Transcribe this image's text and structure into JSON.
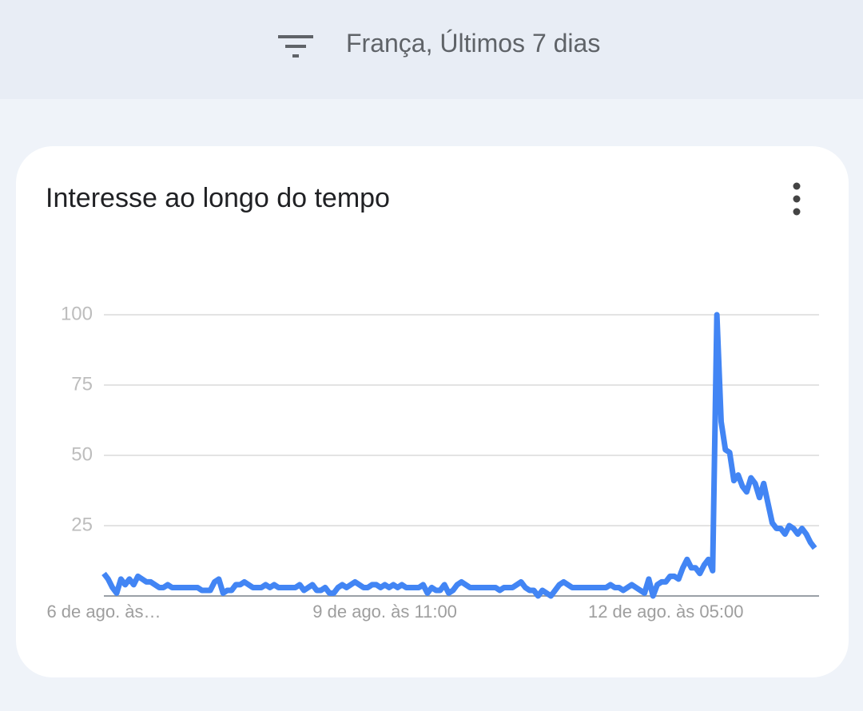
{
  "header": {
    "filter": "França, Últimos 7 dias"
  },
  "card": {
    "title": "Interesse ao longo do tempo"
  },
  "chart_data": {
    "type": "line",
    "categories": [
      "6 de ago. às…",
      null,
      null,
      null,
      null,
      null,
      null,
      null,
      null,
      null,
      null,
      null,
      null,
      null,
      null,
      null,
      null,
      null,
      null,
      null,
      null,
      null,
      null,
      null,
      null,
      null,
      null,
      null,
      null,
      null,
      null,
      null,
      null,
      null,
      null,
      null,
      null,
      null,
      null,
      null,
      null,
      null,
      null,
      null,
      null,
      null,
      null,
      null,
      null,
      null,
      null,
      null,
      null,
      null,
      null,
      null,
      null,
      null,
      null,
      null,
      null,
      null,
      null,
      null,
      null,
      null,
      "9 de ago. às 11:00",
      null,
      null,
      null,
      null,
      null,
      null,
      null,
      null,
      null,
      null,
      null,
      null,
      null,
      null,
      null,
      null,
      null,
      null,
      null,
      null,
      null,
      null,
      null,
      null,
      null,
      null,
      null,
      null,
      null,
      null,
      null,
      null,
      null,
      null,
      null,
      null,
      null,
      null,
      null,
      null,
      null,
      null,
      null,
      null,
      null,
      null,
      null,
      null,
      null,
      null,
      null,
      null,
      null,
      null,
      null,
      null,
      null,
      null,
      null,
      null,
      null,
      null,
      null,
      null,
      null,
      "12 de ago. às 05:00",
      null,
      null,
      null,
      null,
      null,
      null,
      null,
      null,
      null,
      null,
      null,
      null,
      null,
      null,
      null,
      null,
      null,
      null,
      null,
      null,
      null,
      null,
      null,
      null,
      null,
      null,
      null,
      null,
      null,
      null,
      null,
      null,
      null,
      null,
      null
    ],
    "values": [
      8,
      6,
      3,
      1,
      6,
      4,
      6,
      4,
      7,
      6,
      5,
      5,
      4,
      3,
      3,
      4,
      3,
      3,
      3,
      3,
      3,
      3,
      3,
      2,
      2,
      2,
      5,
      6,
      1,
      2,
      2,
      4,
      4,
      5,
      4,
      3,
      3,
      3,
      4,
      3,
      4,
      3,
      3,
      3,
      3,
      3,
      4,
      2,
      3,
      4,
      2,
      2,
      3,
      1,
      1,
      3,
      4,
      3,
      4,
      5,
      4,
      3,
      3,
      4,
      4,
      3,
      4,
      3,
      4,
      3,
      4,
      3,
      3,
      3,
      3,
      4,
      1,
      3,
      2,
      2,
      4,
      1,
      2,
      4,
      5,
      4,
      3,
      3,
      3,
      3,
      3,
      3,
      3,
      2,
      3,
      3,
      3,
      4,
      5,
      3,
      2,
      2,
      0,
      2,
      1,
      0,
      2,
      4,
      5,
      4,
      3,
      3,
      3,
      3,
      3,
      3,
      3,
      3,
      3,
      4,
      3,
      3,
      2,
      3,
      4,
      3,
      2,
      1,
      6,
      0,
      4,
      5,
      5,
      7,
      7,
      6,
      10,
      13,
      10,
      10,
      8,
      11,
      13,
      9,
      100,
      62,
      52,
      51,
      41,
      43,
      39,
      37,
      42,
      40,
      35,
      40,
      33,
      26,
      24,
      24,
      22,
      25,
      24,
      22,
      24,
      22,
      19,
      17
    ],
    "color": "#4285f4",
    "ylim": [
      0,
      100
    ],
    "yticks": [
      25,
      50,
      75,
      100
    ],
    "grid": true
  }
}
